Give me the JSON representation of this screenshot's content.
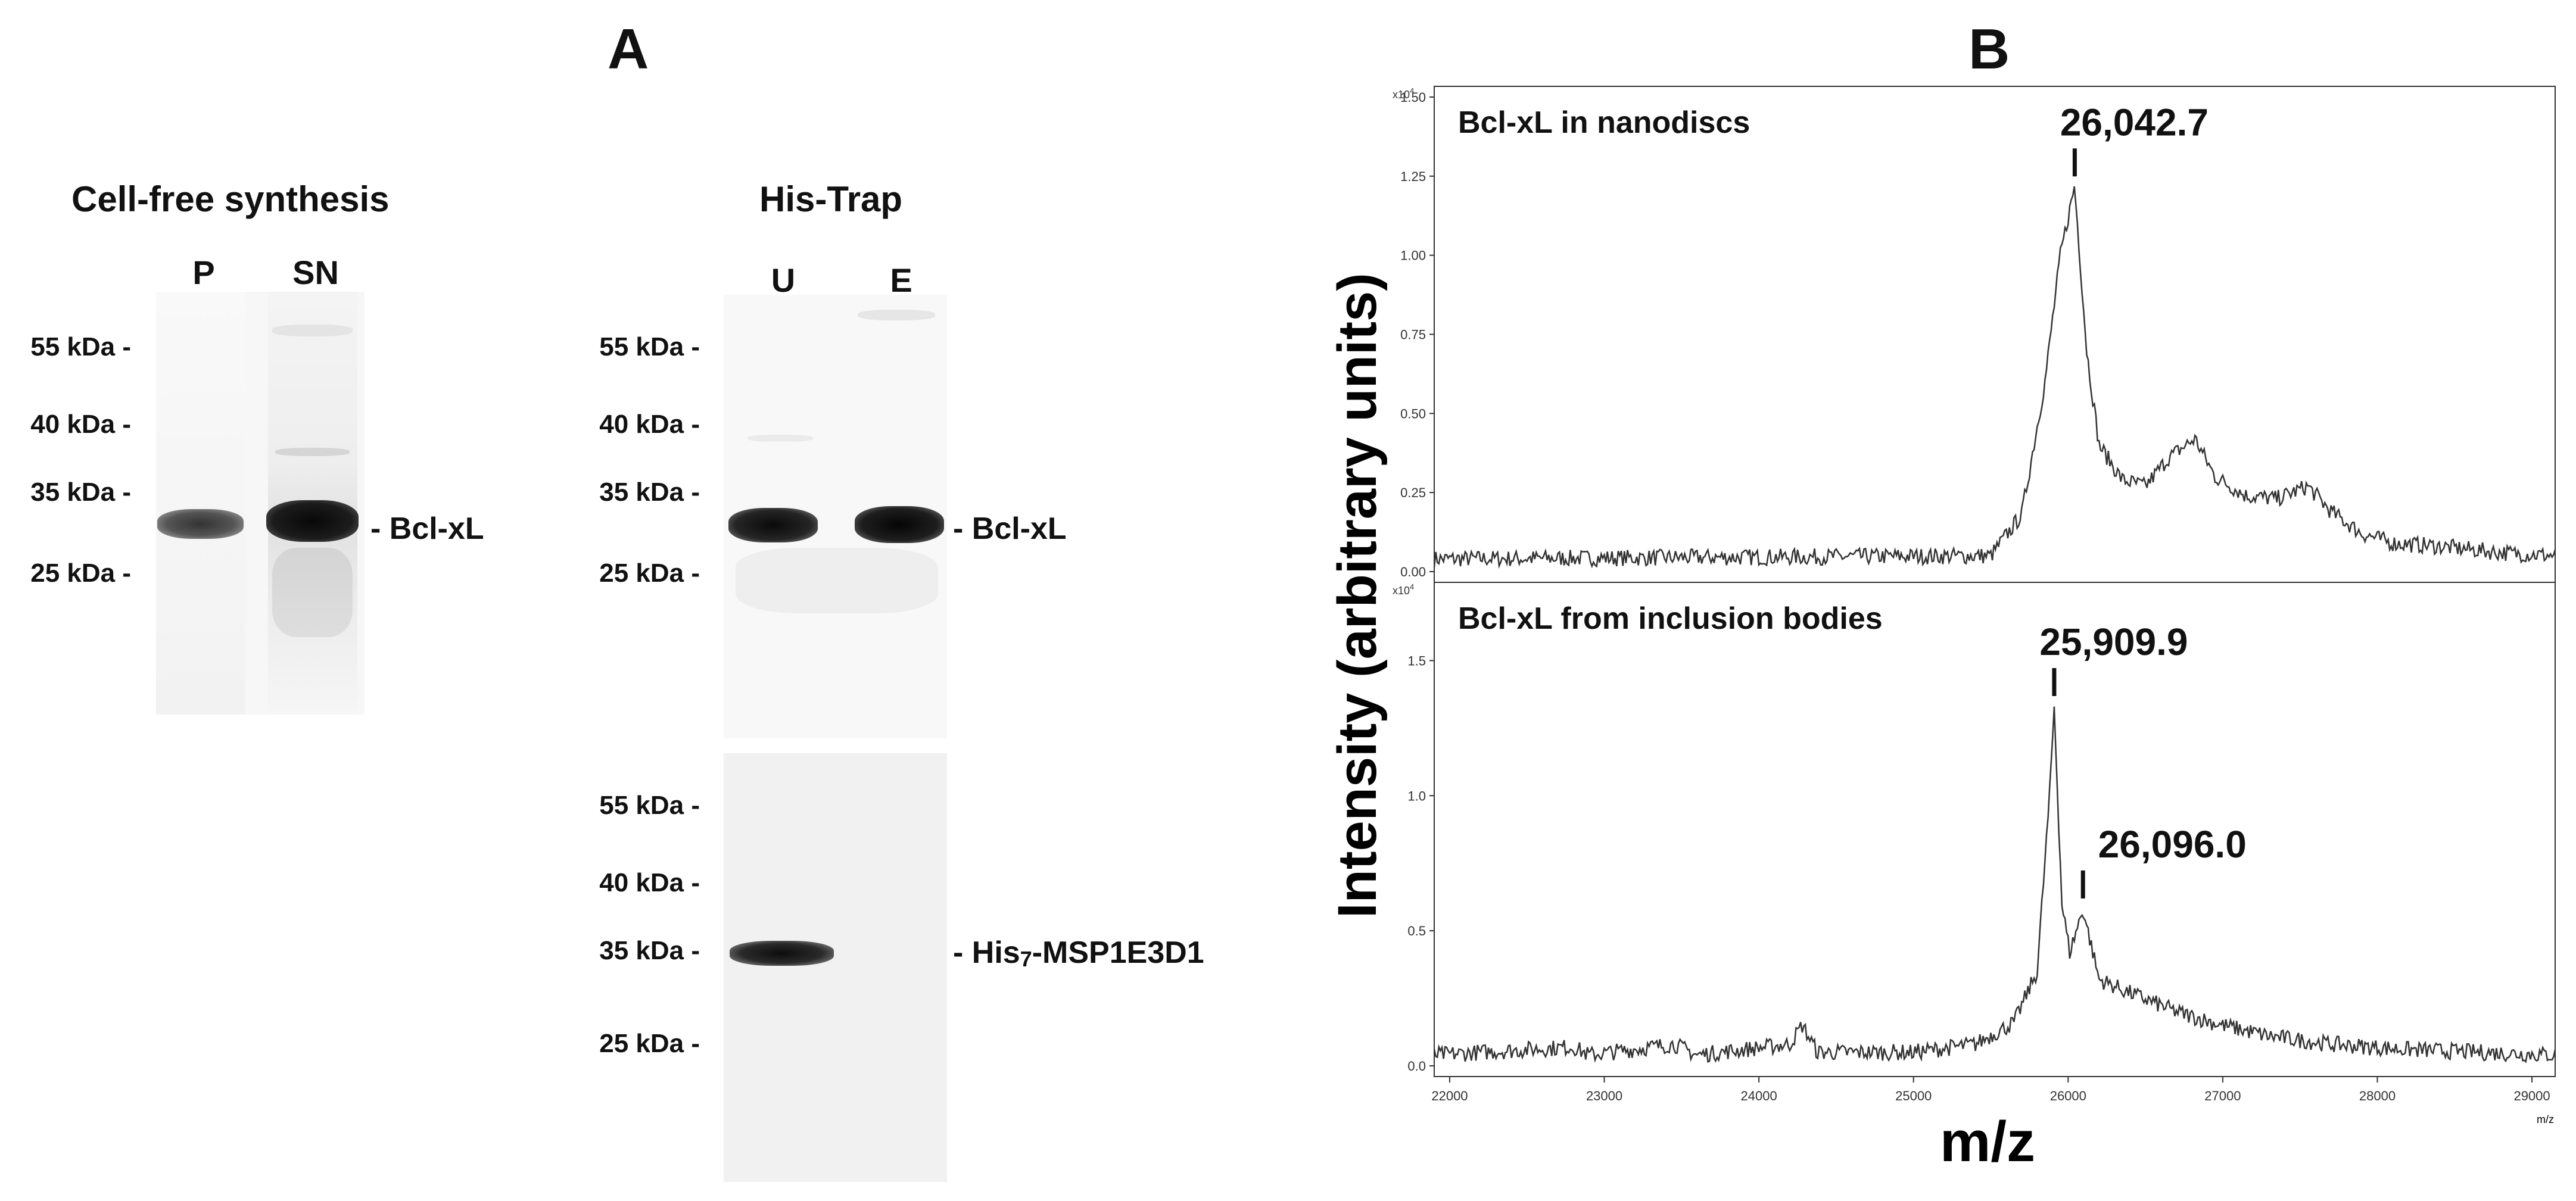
{
  "panel_labels": {
    "a": "A",
    "b": "B"
  },
  "gels": {
    "cell_free": {
      "title": "Cell-free synthesis",
      "lanes": [
        "P",
        "SN"
      ],
      "markers": [
        "55 kDa -",
        "40 kDa -",
        "35 kDa -",
        "25 kDa -"
      ],
      "band_label": "- Bcl-xL"
    },
    "his_trap_top": {
      "title": "His-Trap",
      "lanes": [
        "U",
        "E"
      ],
      "markers": [
        "55 kDa -",
        "40 kDa -",
        "35 kDa -",
        "25 kDa -"
      ],
      "band_label": "- Bcl-xL"
    },
    "his_trap_bottom": {
      "markers": [
        "55 kDa -",
        "40 kDa -",
        "35 kDa -",
        "25 kDa -"
      ],
      "band_label_prefix": "- His",
      "band_label_sub": "7",
      "band_label_suffix": "-MSP1E3D1"
    }
  },
  "chart_data": {
    "type": "line",
    "ylabel": "Intensity (arbitrary units)",
    "xlabel": "m/z",
    "x_unit_small": "m/z",
    "xlim": [
      21900,
      29150
    ],
    "xticks": [
      22000,
      23000,
      24000,
      25000,
      26000,
      27000,
      28000,
      29000
    ],
    "subplots": [
      {
        "name": "Bcl-xL in nanodiscs",
        "scale_label": "x10",
        "scale_exp": "4",
        "ylim": [
          0,
          1.5
        ],
        "yticks": [
          "0.00",
          "0.25",
          "0.50",
          "0.75",
          "1.00",
          "1.25",
          "1.50"
        ],
        "peaks": [
          {
            "mz": 26042.7,
            "label": "26,042.7"
          }
        ],
        "profile": [
          [
            21900,
            0.04
          ],
          [
            25500,
            0.05
          ],
          [
            25700,
            0.18
          ],
          [
            25850,
            0.6
          ],
          [
            25950,
            1.0
          ],
          [
            26042,
            1.22
          ],
          [
            26120,
            0.7
          ],
          [
            26200,
            0.4
          ],
          [
            26350,
            0.29
          ],
          [
            26500,
            0.27
          ],
          [
            26650,
            0.36
          ],
          [
            26820,
            0.42
          ],
          [
            26950,
            0.3
          ],
          [
            27150,
            0.24
          ],
          [
            27350,
            0.23
          ],
          [
            27550,
            0.27
          ],
          [
            27700,
            0.19
          ],
          [
            27900,
            0.12
          ],
          [
            28100,
            0.09
          ],
          [
            28400,
            0.08
          ],
          [
            28800,
            0.06
          ],
          [
            29150,
            0.05
          ]
        ]
      },
      {
        "name": "Bcl-xL from inclusion bodies",
        "scale_label": "x10",
        "scale_exp": "4",
        "ylim": [
          0,
          1.75
        ],
        "yticks": [
          "0.0",
          "0.5",
          "1.0",
          "1.5"
        ],
        "peaks": [
          {
            "mz": 25909.9,
            "label": "25,909.9"
          },
          {
            "mz": 26096.0,
            "label": "26,096.0"
          }
        ],
        "profile": [
          [
            21900,
            0.04
          ],
          [
            22800,
            0.07
          ],
          [
            22900,
            0.04
          ],
          [
            23450,
            0.08
          ],
          [
            23600,
            0.04
          ],
          [
            24200,
            0.08
          ],
          [
            24280,
            0.15
          ],
          [
            24380,
            0.05
          ],
          [
            25000,
            0.05
          ],
          [
            25400,
            0.08
          ],
          [
            25650,
            0.16
          ],
          [
            25800,
            0.35
          ],
          [
            25880,
            1.0
          ],
          [
            25910,
            1.33
          ],
          [
            25960,
            0.6
          ],
          [
            26010,
            0.42
          ],
          [
            26096,
            0.58
          ],
          [
            26200,
            0.32
          ],
          [
            26400,
            0.27
          ],
          [
            26700,
            0.2
          ],
          [
            27000,
            0.15
          ],
          [
            27300,
            0.11
          ],
          [
            27700,
            0.08
          ],
          [
            28200,
            0.06
          ],
          [
            29150,
            0.04
          ]
        ]
      }
    ]
  }
}
